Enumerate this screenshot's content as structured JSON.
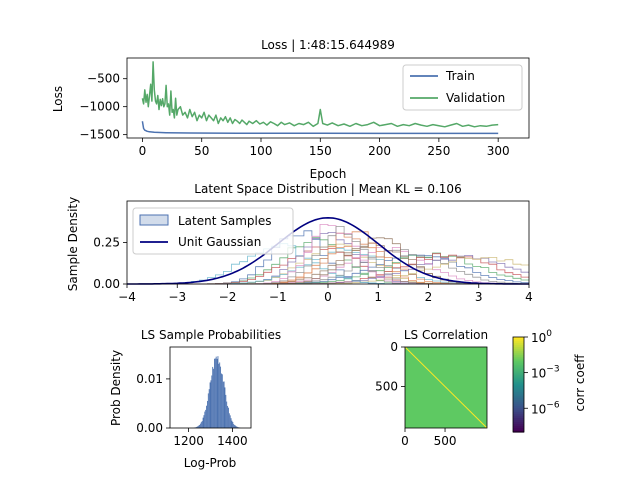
{
  "chart_data": [
    {
      "id": "loss",
      "type": "line",
      "title": "Loss | 1:48:15.644989",
      "xlabel": "Epoch",
      "ylabel": "Loss",
      "xlim": [
        -13,
        326
      ],
      "ylim": [
        -1560,
        -130
      ],
      "xticks": [
        0,
        50,
        100,
        150,
        200,
        250,
        300
      ],
      "yticks": [
        -500,
        -1000,
        -1500
      ],
      "ytick_labels": [
        "−500",
        "−1000",
        "−1500"
      ],
      "grid": false,
      "legend_position": "top-right",
      "series": [
        {
          "name": "Train",
          "color": "#4c72b0",
          "x": [
            0,
            1,
            2,
            4,
            6,
            10,
            15,
            20,
            30,
            40,
            60,
            80,
            100,
            150,
            200,
            250,
            300
          ],
          "y": [
            -1260,
            -1390,
            -1420,
            -1440,
            -1450,
            -1458,
            -1462,
            -1465,
            -1468,
            -1470,
            -1472,
            -1474,
            -1475,
            -1476,
            -1477,
            -1478,
            -1478
          ]
        },
        {
          "name": "Validation",
          "color": "#55a868",
          "x": [
            0,
            1,
            2,
            3,
            4,
            5,
            6,
            7,
            8,
            9,
            10,
            11,
            12,
            13,
            14,
            15,
            16,
            17,
            18,
            19,
            20,
            21,
            22,
            23,
            24,
            25,
            26,
            27,
            28,
            29,
            30,
            32,
            34,
            36,
            38,
            40,
            42,
            44,
            46,
            48,
            50,
            52,
            54,
            56,
            58,
            60,
            62,
            64,
            66,
            68,
            70,
            72,
            74,
            76,
            78,
            80,
            82,
            84,
            86,
            88,
            90,
            93,
            96,
            99,
            102,
            105,
            108,
            111,
            114,
            117,
            120,
            124,
            128,
            132,
            136,
            140,
            144,
            148,
            150,
            152,
            156,
            160,
            165,
            170,
            175,
            180,
            185,
            190,
            195,
            200,
            205,
            210,
            215,
            220,
            225,
            230,
            235,
            240,
            245,
            250,
            255,
            260,
            265,
            270,
            275,
            280,
            285,
            290,
            295,
            300
          ],
          "y": [
            -850,
            -950,
            -700,
            -920,
            -780,
            -1000,
            -800,
            -600,
            -900,
            -200,
            -700,
            -900,
            -950,
            -800,
            -1050,
            -870,
            -980,
            -860,
            -1000,
            -950,
            -620,
            -1000,
            -950,
            -1150,
            -720,
            -1100,
            -1050,
            -1200,
            -850,
            -1150,
            -1050,
            -1000,
            -1150,
            -1100,
            -1200,
            -1050,
            -1180,
            -1100,
            -1250,
            -1150,
            -1200,
            -1100,
            -1250,
            -1150,
            -1200,
            -1250,
            -1150,
            -1300,
            -1200,
            -1250,
            -1180,
            -1280,
            -1200,
            -1300,
            -1230,
            -1260,
            -1300,
            -1240,
            -1280,
            -1320,
            -1260,
            -1300,
            -1250,
            -1310,
            -1280,
            -1330,
            -1270,
            -1300,
            -1340,
            -1280,
            -1320,
            -1290,
            -1340,
            -1300,
            -1320,
            -1280,
            -1350,
            -1300,
            -1050,
            -1300,
            -1330,
            -1290,
            -1340,
            -1310,
            -1350,
            -1300,
            -1340,
            -1320,
            -1280,
            -1340,
            -1320,
            -1300,
            -1350,
            -1320,
            -1340,
            -1300,
            -1330,
            -1350,
            -1320,
            -1340,
            -1360,
            -1330,
            -1300,
            -1350,
            -1330,
            -1360,
            -1340,
            -1350,
            -1330,
            -1320
          ]
        }
      ]
    },
    {
      "id": "latent",
      "type": "area",
      "title": "Latent Space Distribution | Mean KL = 0.106",
      "xlabel": "",
      "ylabel": "Sample Density",
      "xlim": [
        -4,
        4
      ],
      "ylim": [
        0,
        0.5
      ],
      "xticks": [
        -4,
        -3,
        -2,
        -1,
        0,
        1,
        2,
        3,
        4
      ],
      "xtick_labels": [
        "−4",
        "−3",
        "−2",
        "−1",
        "0",
        "1",
        "2",
        "3",
        "4"
      ],
      "yticks": [
        0,
        0.25
      ],
      "ytick_labels": [
        "0.00",
        "0.25"
      ],
      "grid": false,
      "legend_position": "top-left",
      "series": [
        {
          "name": "Latent Samples",
          "color": "#4c72b0",
          "kind": "step-histograms",
          "means": [
            -0.6,
            -0.3,
            -0.1,
            0.0,
            0.2,
            0.4,
            0.6,
            0.9,
            1.2,
            1.5,
            1.8,
            2.1,
            2.4,
            2.7,
            3.0,
            -1.0,
            0.5,
            1.0,
            0.1,
            0.3
          ],
          "stds": [
            0.5,
            0.6,
            0.7,
            0.55,
            0.65,
            0.8,
            0.6,
            0.7,
            0.75,
            0.8,
            0.85,
            0.9,
            0.9,
            1.0,
            1.0,
            0.7,
            0.5,
            0.6,
            0.45,
            0.5
          ],
          "palette": [
            "#4c72b0",
            "#55a868",
            "#c44e52",
            "#8172b2",
            "#ccb974",
            "#64b5cd",
            "#dd8452",
            "#937860",
            "#da8bc3",
            "#8c8c8c"
          ]
        },
        {
          "name": "Unit Gaussian",
          "color": "#000080",
          "kind": "normal-pdf",
          "mean": 0,
          "std": 1
        }
      ]
    },
    {
      "id": "ls_prob",
      "type": "bar",
      "title": "LS Sample Probabilities",
      "xlabel": "Log-Prob",
      "ylabel": "Prob Density",
      "xlim": [
        1115,
        1485
      ],
      "ylim": [
        0,
        0.0165
      ],
      "xticks": [
        1200,
        1400
      ],
      "yticks": [
        0,
        0.01
      ],
      "ytick_labels": [
        "0.00",
        "0.01"
      ],
      "color": "#4c72b0",
      "distribution": {
        "mean": 1330,
        "std": 32,
        "peak_density": 0.0146,
        "bin_start": 1200,
        "bin_end": 1460,
        "bin_width": 4
      }
    },
    {
      "id": "ls_corr",
      "type": "heatmap",
      "title": "LS Correlation",
      "xlabel": "",
      "ylabel": "",
      "n": 1024,
      "xticks": [
        0,
        500
      ],
      "yticks": [
        0,
        500
      ],
      "diagonal_value": 1,
      "offdiag_value": 0.01,
      "colorbar": {
        "label": "corr coeff",
        "scale": "log",
        "colormap": "viridis",
        "ticks": [
          {
            "base": "10",
            "exp": "0",
            "exp_value": 0
          },
          {
            "base": "10",
            "exp": "−3",
            "exp_value": -3
          },
          {
            "base": "10",
            "exp": "−6",
            "exp_value": -6
          }
        ],
        "min_exp": -8,
        "max_exp": 0
      }
    }
  ]
}
